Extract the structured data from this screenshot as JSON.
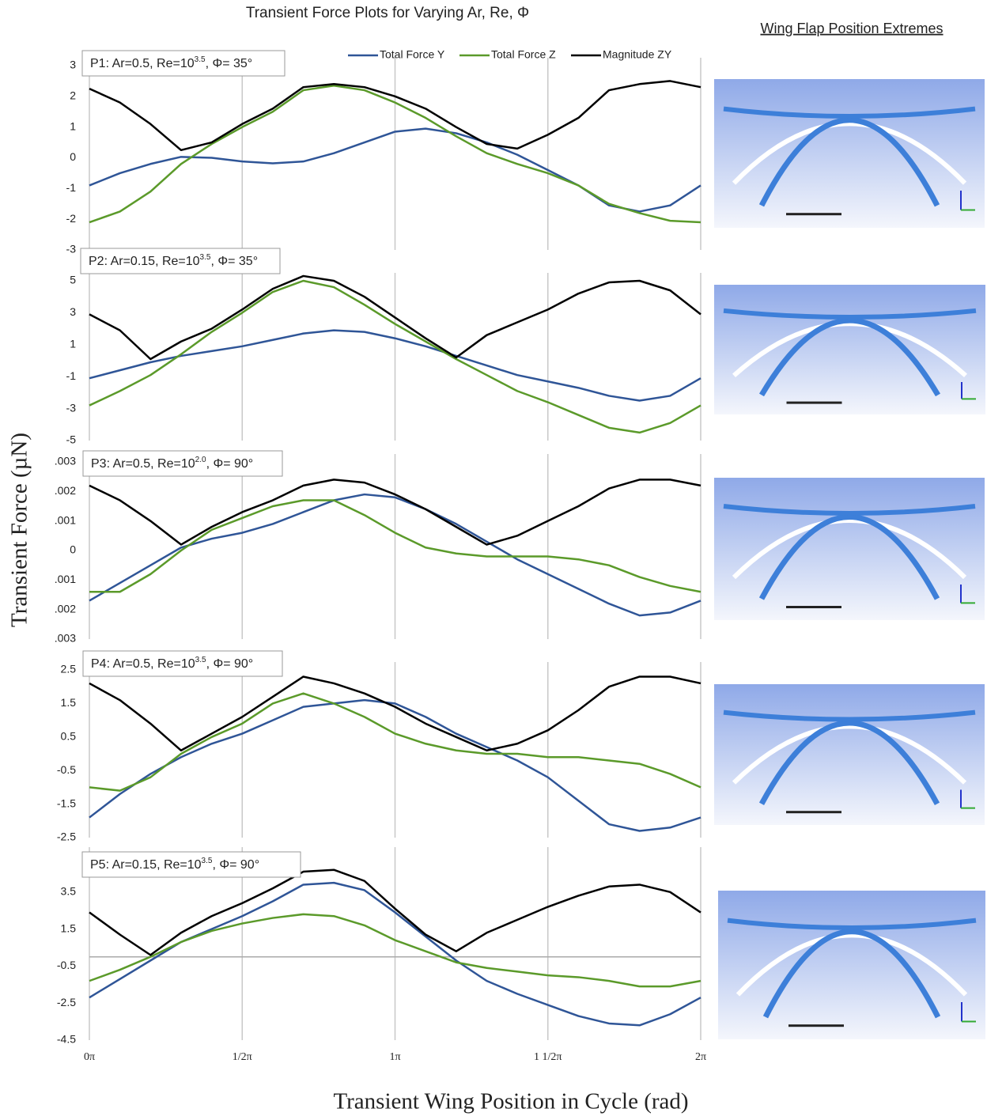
{
  "title": "Transient Force Plots for Varying Ar, Re, Φ",
  "side_title": "Wing Flap Position Extremes",
  "y_label": "Transient Force (µN)",
  "x_label": "Transient Wing Position in Cycle (rad)",
  "legend": [
    {
      "name": "Total Force Y",
      "color": "#2f5597"
    },
    {
      "name": "Total Force Z",
      "color": "#5b9a2a"
    },
    {
      "name": "Magnitude ZY",
      "color": "#000000"
    }
  ],
  "x_axis": {
    "x": [
      0,
      0.1,
      0.2,
      0.3,
      0.4,
      0.5,
      0.6,
      0.7,
      0.8,
      0.9,
      1.0,
      1.1,
      1.2,
      1.3,
      1.4,
      1.5,
      1.6,
      1.7,
      1.8,
      1.9,
      2.0
    ],
    "xlim": [
      0,
      2
    ],
    "xticks": [
      {
        "value": 0,
        "label": "0π"
      },
      {
        "value": 0.5,
        "label": "1/2π"
      },
      {
        "value": 1,
        "label": "1π"
      },
      {
        "value": 1.5,
        "label": "1 1/2π"
      },
      {
        "value": 2,
        "label": "2π"
      }
    ]
  },
  "chart_data": [
    {
      "type": "line",
      "label": {
        "prefix": "P1: Ar=0.5, Re=10",
        "exponent": "3.5",
        "suffix": ",  Φ= 35°"
      },
      "ylim": [
        -3,
        3
      ],
      "yticks": [
        3,
        2,
        1,
        0,
        -1,
        -2,
        -3
      ],
      "grid": true,
      "series": [
        {
          "values": [
            -0.9,
            -0.5,
            -0.2,
            0.03,
            0.0,
            -0.12,
            -0.18,
            -0.12,
            0.15,
            0.5,
            0.85,
            0.95,
            0.8,
            0.5,
            0.1,
            -0.4,
            -0.9,
            -1.55,
            -1.75,
            -1.55,
            -0.9
          ]
        },
        {
          "values": [
            -2.1,
            -1.75,
            -1.1,
            -0.2,
            0.45,
            1.0,
            1.5,
            2.2,
            2.35,
            2.2,
            1.8,
            1.3,
            0.7,
            0.15,
            -0.2,
            -0.5,
            -0.9,
            -1.5,
            -1.8,
            -2.05,
            -2.1
          ]
        },
        {
          "values": [
            2.25,
            1.8,
            1.1,
            0.25,
            0.5,
            1.1,
            1.6,
            2.3,
            2.4,
            2.3,
            2.0,
            1.6,
            1.0,
            0.45,
            0.3,
            0.75,
            1.3,
            2.2,
            2.4,
            2.5,
            2.3
          ]
        }
      ]
    },
    {
      "type": "line",
      "label": {
        "prefix": "P2: Ar=0.15, Re=10",
        "exponent": "3.5",
        "suffix": ",  Φ= 35°"
      },
      "ylim": [
        -5,
        5
      ],
      "yticks": [
        5,
        3,
        1,
        -1,
        -3,
        -5
      ],
      "grid": true,
      "series": [
        {
          "values": [
            -1.1,
            -0.6,
            -0.1,
            0.3,
            0.6,
            0.9,
            1.3,
            1.7,
            1.9,
            1.8,
            1.4,
            0.9,
            0.3,
            -0.3,
            -0.9,
            -1.3,
            -1.7,
            -2.2,
            -2.5,
            -2.2,
            -1.1
          ]
        },
        {
          "values": [
            -2.8,
            -1.9,
            -0.9,
            0.4,
            1.8,
            3.0,
            4.3,
            5.0,
            4.6,
            3.5,
            2.3,
            1.2,
            0.1,
            -0.9,
            -1.9,
            -2.6,
            -3.4,
            -4.2,
            -4.5,
            -3.9,
            -2.8
          ]
        },
        {
          "values": [
            2.9,
            1.9,
            0.1,
            1.2,
            2.0,
            3.2,
            4.5,
            5.3,
            5.0,
            4.0,
            2.7,
            1.4,
            0.2,
            1.6,
            2.4,
            3.2,
            4.2,
            4.9,
            5.0,
            4.4,
            2.9
          ]
        }
      ]
    },
    {
      "type": "line",
      "label": {
        "prefix": "P3: Ar=0.5, Re=10",
        "exponent": "2.0",
        "suffix": ",  Φ= 90°"
      },
      "ylim": [
        -0.003,
        0.003
      ],
      "yticks": [
        {
          "value": 0.003,
          "label": ".003"
        },
        {
          "value": 0.002,
          "label": ".002"
        },
        {
          "value": 0.001,
          "label": ".001"
        },
        0,
        {
          "value": -0.001,
          "label": ".001"
        },
        {
          "value": -0.002,
          "label": ".002"
        },
        {
          "value": -0.003,
          "label": ".003"
        }
      ],
      "grid": true,
      "series": [
        {
          "values": [
            -0.0017,
            -0.0011,
            -0.0005,
            0.0001,
            0.0004,
            0.0006,
            0.0009,
            0.0013,
            0.0017,
            0.0019,
            0.0018,
            0.0014,
            0.0009,
            0.0003,
            -0.0003,
            -0.0008,
            -0.0013,
            -0.0018,
            -0.0022,
            -0.0021,
            -0.0017
          ]
        },
        {
          "values": [
            -0.0014,
            -0.0014,
            -0.0008,
            0.0,
            0.0007,
            0.0011,
            0.0015,
            0.0017,
            0.0017,
            0.0012,
            0.0006,
            0.0001,
            -0.0001,
            -0.0002,
            -0.0002,
            -0.0002,
            -0.0003,
            -0.0005,
            -0.0009,
            -0.0012,
            -0.0014
          ]
        },
        {
          "values": [
            0.0022,
            0.0017,
            0.001,
            0.0002,
            0.0008,
            0.0013,
            0.0017,
            0.0022,
            0.0024,
            0.0023,
            0.0019,
            0.0014,
            0.0008,
            0.0002,
            0.0005,
            0.001,
            0.0015,
            0.0021,
            0.0024,
            0.0024,
            0.0022
          ]
        }
      ]
    },
    {
      "type": "line",
      "label": {
        "prefix": "P4: Ar=0.5, Re=10",
        "exponent": "3.5",
        "suffix": ",  Φ= 90°"
      },
      "ylim": [
        -2.5,
        2.5
      ],
      "yticks": [
        2.5,
        1.5,
        0.5,
        -0.5,
        -1.5,
        -2.5
      ],
      "grid": true,
      "series": [
        {
          "values": [
            -1.9,
            -1.2,
            -0.6,
            -0.1,
            0.3,
            0.6,
            1.0,
            1.4,
            1.5,
            1.6,
            1.5,
            1.1,
            0.6,
            0.2,
            -0.2,
            -0.7,
            -1.4,
            -2.1,
            -2.3,
            -2.2,
            -1.9
          ]
        },
        {
          "values": [
            -1.0,
            -1.1,
            -0.7,
            0.0,
            0.5,
            0.9,
            1.5,
            1.8,
            1.5,
            1.1,
            0.6,
            0.3,
            0.1,
            0.0,
            0.0,
            -0.1,
            -0.1,
            -0.2,
            -0.3,
            -0.6,
            -1.0
          ]
        },
        {
          "values": [
            2.1,
            1.6,
            0.9,
            0.1,
            0.6,
            1.1,
            1.7,
            2.3,
            2.1,
            1.8,
            1.4,
            0.9,
            0.5,
            0.1,
            0.3,
            0.7,
            1.3,
            2.0,
            2.3,
            2.3,
            2.1
          ]
        }
      ]
    },
    {
      "type": "line",
      "label": {
        "prefix": "P5: Ar=0.15, Re=10",
        "exponent": "3.5",
        "suffix": ",  Φ= 90°"
      },
      "ylim": [
        -4.5,
        5.5
      ],
      "yticks": [
        3.5,
        1.5,
        -0.5,
        -2.5,
        -4.5
      ],
      "grid": true,
      "zero_line": true,
      "series": [
        {
          "values": [
            -2.2,
            -1.2,
            -0.2,
            0.8,
            1.5,
            2.2,
            3.0,
            3.9,
            4.0,
            3.6,
            2.4,
            1.1,
            -0.2,
            -1.3,
            -2.0,
            -2.6,
            -3.2,
            -3.6,
            -3.7,
            -3.1,
            -2.2
          ]
        },
        {
          "values": [
            -1.3,
            -0.7,
            0.0,
            0.8,
            1.4,
            1.8,
            2.1,
            2.3,
            2.2,
            1.7,
            0.9,
            0.3,
            -0.3,
            -0.6,
            -0.8,
            -1.0,
            -1.1,
            -1.3,
            -1.6,
            -1.6,
            -1.3
          ]
        },
        {
          "values": [
            2.4,
            1.2,
            0.1,
            1.3,
            2.2,
            2.9,
            3.7,
            4.6,
            4.7,
            4.1,
            2.6,
            1.2,
            0.3,
            1.3,
            2.0,
            2.7,
            3.3,
            3.8,
            3.9,
            3.5,
            2.4
          ]
        }
      ]
    }
  ]
}
